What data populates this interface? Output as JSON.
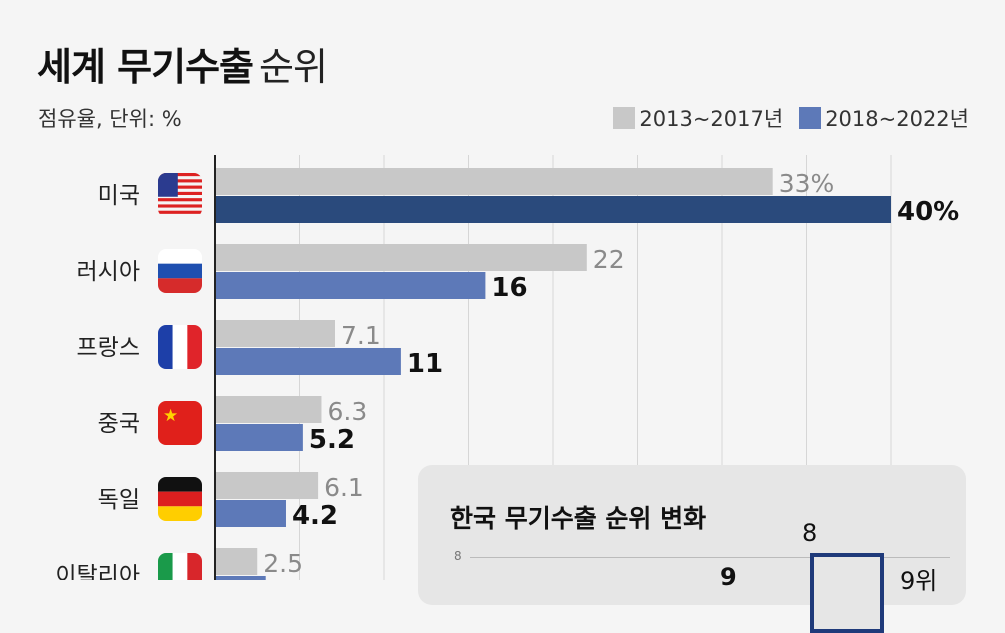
{
  "header": {
    "title_bold": "세계 무기수출",
    "title_light": "순위",
    "subtitle": "점유율, 단위: %"
  },
  "legend": [
    {
      "label": "2013~2017년",
      "color": "#c8c8c8"
    },
    {
      "label": "2018~2022년",
      "color": "#5d79b8"
    }
  ],
  "chart_data": {
    "type": "bar",
    "orientation": "horizontal",
    "categories": [
      "미국",
      "러시아",
      "프랑스",
      "중국",
      "독일",
      "이탈리아"
    ],
    "flag_icons": [
      "us-flag-icon",
      "russia-flag-icon",
      "france-flag-icon",
      "china-flag-icon",
      "germany-flag-icon",
      "italy-flag-icon"
    ],
    "series": [
      {
        "name": "2013~2017년",
        "color": "#c8c8c8",
        "values": [
          33,
          22,
          7.1,
          6.3,
          6.1,
          2.5
        ],
        "labels": [
          "33%",
          "22",
          "7.1",
          "6.3",
          "6.1",
          "2.5"
        ]
      },
      {
        "name": "2018~2022년",
        "color": "#5d79b8",
        "highlight_color": "#2a4a7c",
        "values": [
          40,
          16,
          11,
          5.2,
          4.2,
          3.0
        ],
        "labels": [
          "40%",
          "16",
          "11",
          "5.2",
          "4.2",
          ""
        ]
      }
    ],
    "xlim": [
      0,
      40
    ],
    "grid": true
  },
  "inset": {
    "title": "한국 무기수출 순위 변화",
    "tick_label": "8",
    "top_label": "8",
    "left_value": "9",
    "rank_label": "9위"
  }
}
